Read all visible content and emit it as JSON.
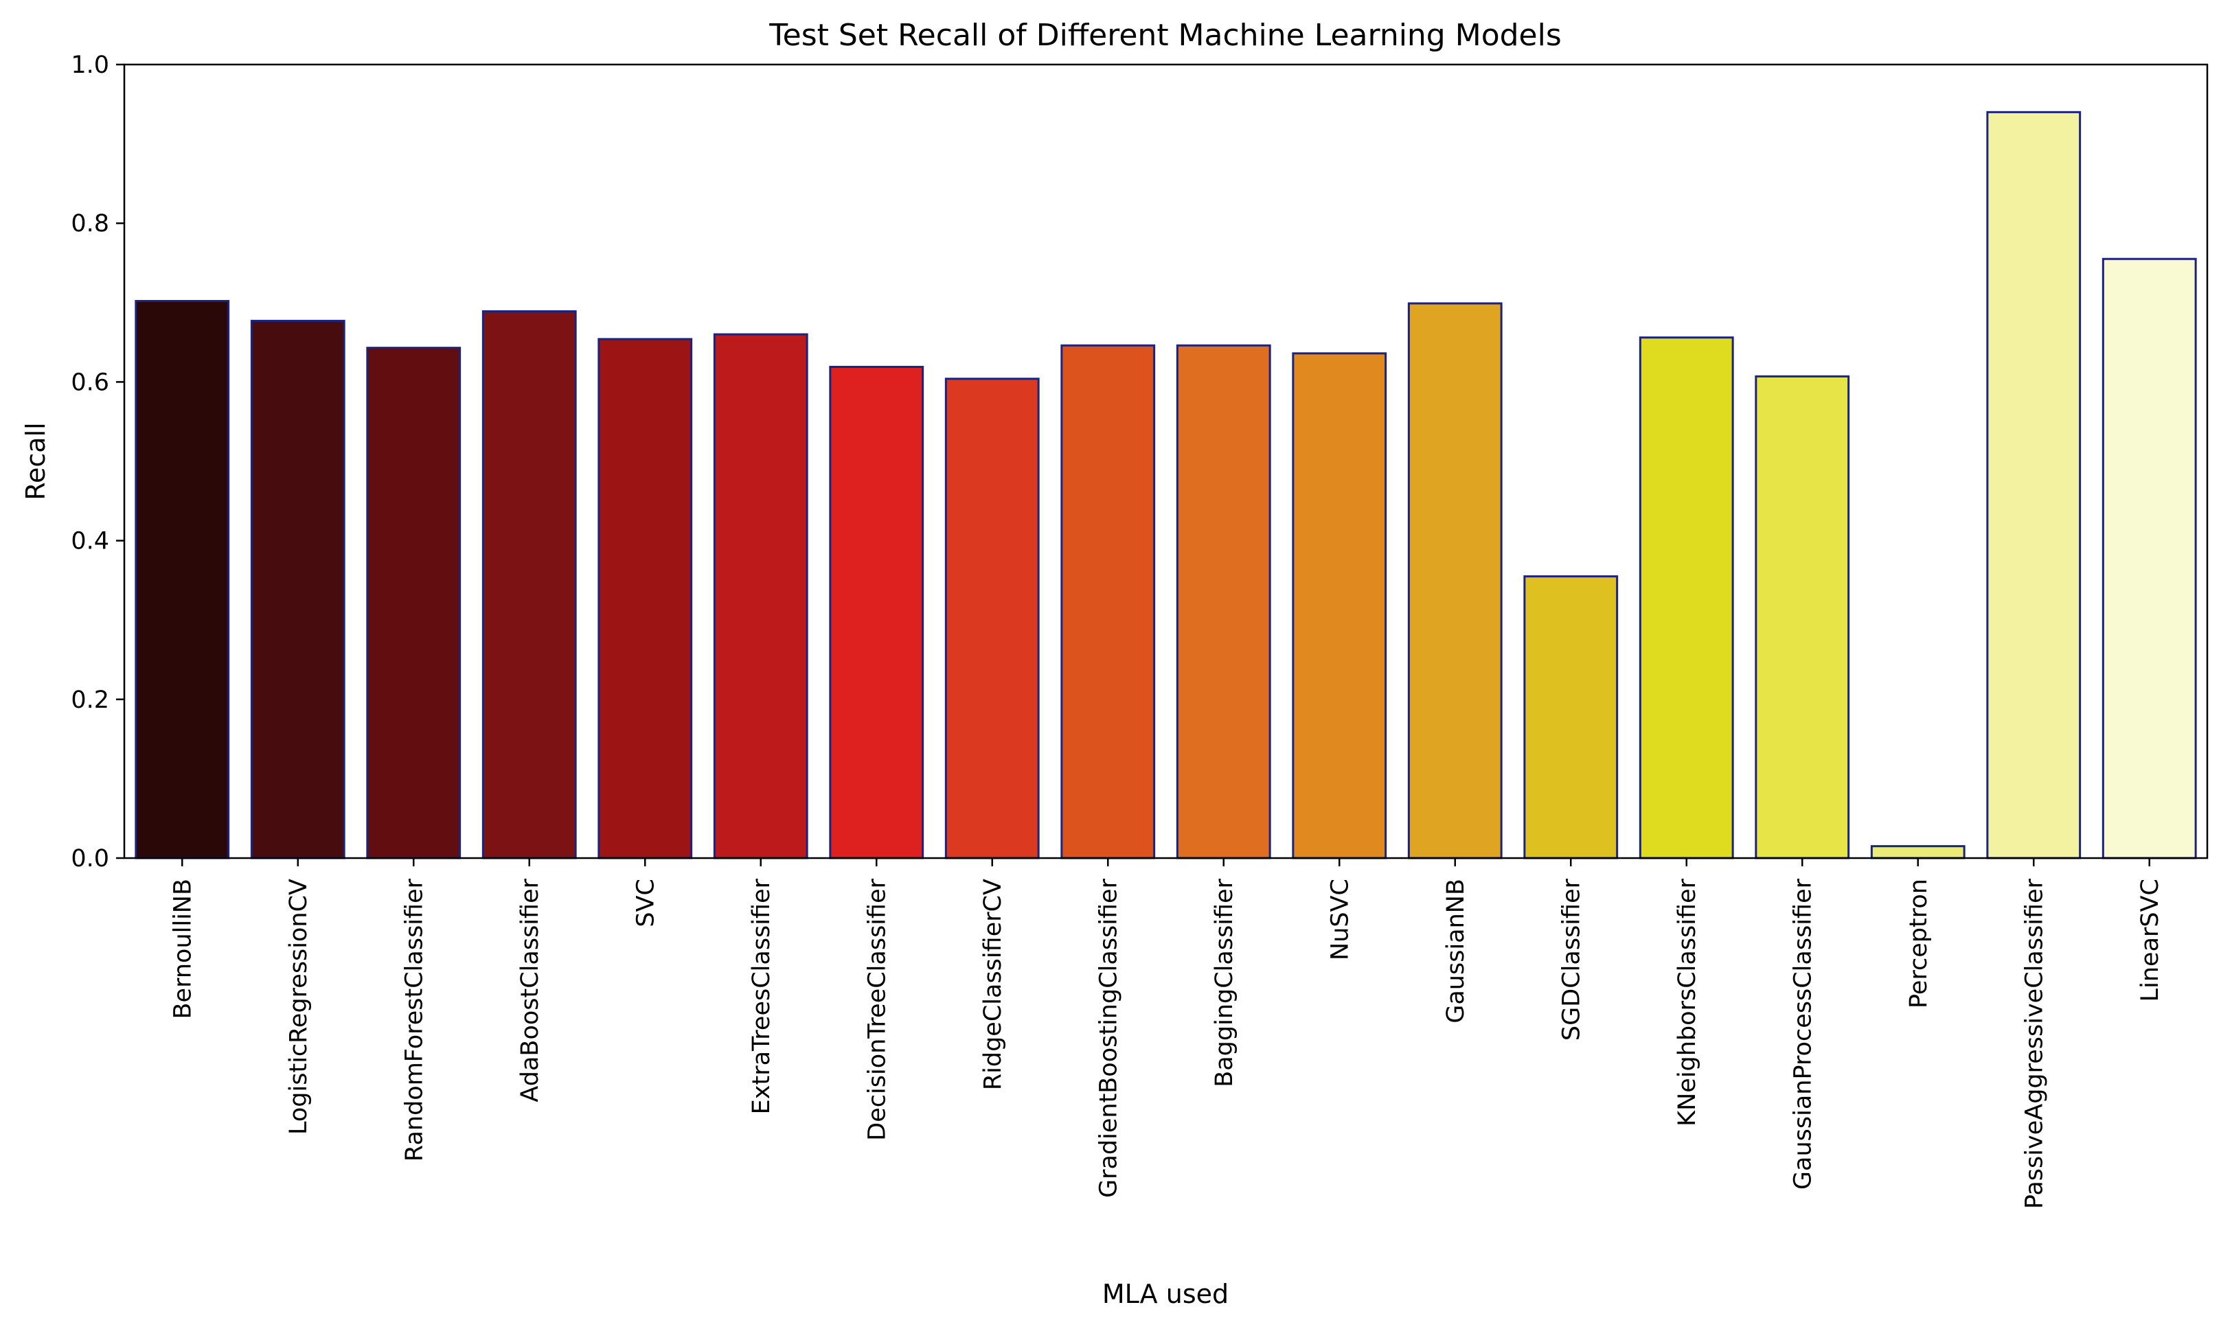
{
  "chart_data": {
    "type": "bar",
    "title": "Test Set Recall of Different Machine Learning Models",
    "xlabel": "MLA used",
    "ylabel": "Recall",
    "ylim": [
      0,
      1.0
    ],
    "yticks": [
      "0.0",
      "0.2",
      "0.4",
      "0.6",
      "0.8",
      "1.0"
    ],
    "grid": false,
    "categories": [
      "BernoulliNB",
      "LogisticRegressionCV",
      "RandomForestClassifier",
      "AdaBoostClassifier",
      "SVC",
      "ExtraTreesClassifier",
      "DecisionTreeClassifier",
      "RidgeClassifierCV",
      "GradientBoostingClassifier",
      "BaggingClassifier",
      "NuSVC",
      "GaussianNB",
      "SGDClassifier",
      "KNeighborsClassifier",
      "GaussianProcessClassifier",
      "Perceptron",
      "PassiveAggressiveClassifier",
      "LinearSVC"
    ],
    "values": [
      0.702,
      0.677,
      0.643,
      0.689,
      0.654,
      0.66,
      0.619,
      0.604,
      0.646,
      0.646,
      0.636,
      0.699,
      0.355,
      0.656,
      0.607,
      0.015,
      0.94,
      0.755
    ],
    "bar_colors": [
      "#2a0808",
      "#470c0e",
      "#620e10",
      "#7c1213",
      "#9c1414",
      "#bd1a1b",
      "#de211f",
      "#db3920",
      "#dc531d",
      "#e06e20",
      "#df891f",
      "#dfa421",
      "#dfc021",
      "#dfdc1f",
      "#e6e446",
      "#ebeb78",
      "#f2f2a1",
      "#f9f9d2"
    ],
    "bar_edge_color": "#1a237e"
  }
}
